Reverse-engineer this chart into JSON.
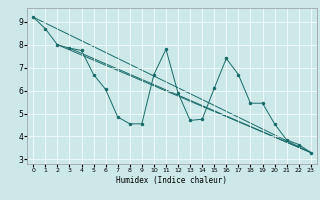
{
  "xlabel": "Humidex (Indice chaleur)",
  "ylabel": "",
  "background_color": "#cce8e8",
  "grid_color": "#ffffff",
  "line_color": "#1a6b6b",
  "xlim": [
    -0.5,
    23.5
  ],
  "ylim": [
    2.8,
    9.6
  ],
  "xticks": [
    0,
    1,
    2,
    3,
    4,
    5,
    6,
    7,
    8,
    9,
    10,
    11,
    12,
    13,
    14,
    15,
    16,
    17,
    18,
    19,
    20,
    21,
    22,
    23
  ],
  "yticks": [
    3,
    4,
    5,
    6,
    7,
    8,
    9
  ],
  "series": [
    [
      0,
      9.2
    ],
    [
      1,
      8.7
    ],
    [
      2,
      8.0
    ],
    [
      3,
      7.85
    ],
    [
      4,
      7.75
    ],
    [
      5,
      6.7
    ],
    [
      6,
      6.05
    ],
    [
      7,
      4.85
    ],
    [
      8,
      4.55
    ],
    [
      9,
      4.55
    ],
    [
      10,
      6.7
    ],
    [
      11,
      7.8
    ],
    [
      12,
      5.9
    ],
    [
      13,
      4.7
    ],
    [
      14,
      4.75
    ],
    [
      15,
      6.1
    ],
    [
      16,
      7.4
    ],
    [
      17,
      6.7
    ],
    [
      18,
      5.45
    ],
    [
      19,
      5.45
    ],
    [
      20,
      4.55
    ],
    [
      21,
      3.85
    ],
    [
      22,
      3.65
    ],
    [
      23,
      3.3
    ]
  ],
  "trend_lines": [
    {
      "x": [
        0,
        23
      ],
      "y": [
        9.2,
        3.3
      ]
    },
    {
      "x": [
        2,
        23
      ],
      "y": [
        8.0,
        3.3
      ]
    },
    {
      "x": [
        3,
        23
      ],
      "y": [
        7.85,
        3.3
      ]
    }
  ]
}
